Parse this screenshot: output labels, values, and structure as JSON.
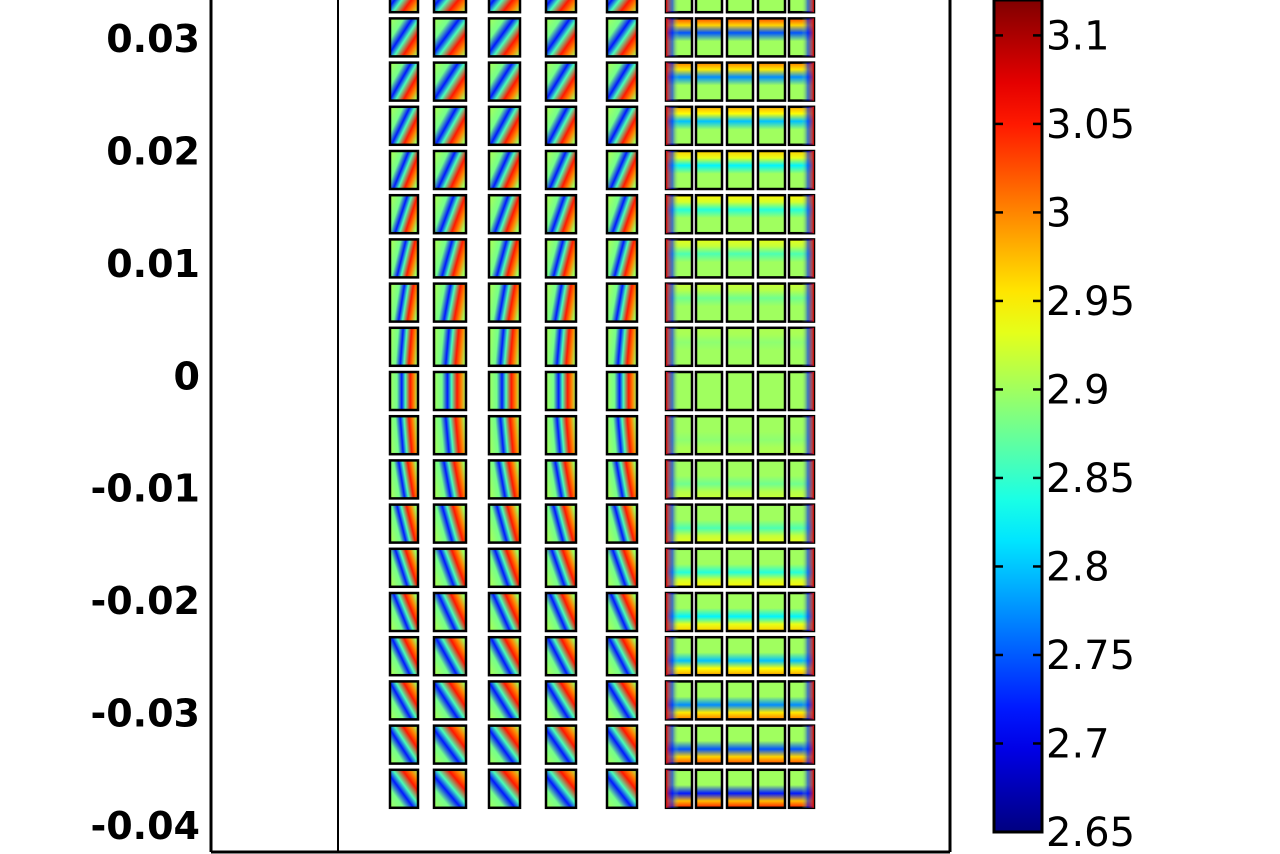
{
  "chart_data": {
    "type": "heatmap",
    "title": "",
    "xlabel": "",
    "ylabel": "",
    "y_ticks": [
      "0.03",
      "0.02",
      "0.01",
      "0",
      "-0.01",
      "-0.02",
      "-0.03",
      "-0.04"
    ],
    "y_tick_values": [
      0.03,
      0.02,
      0.01,
      0,
      -0.01,
      -0.02,
      -0.03,
      -0.04
    ],
    "ylim": [
      -0.04,
      0.034
    ],
    "colorbar": {
      "colormap": "jet",
      "range": [
        2.65,
        3.12
      ],
      "ticks": [
        "3.1",
        "3.05",
        "3",
        "2.95",
        "2.9",
        "2.85",
        "2.8",
        "2.75",
        "2.7",
        "2.65"
      ],
      "tick_values": [
        3.1,
        3.05,
        3.0,
        2.95,
        2.9,
        2.85,
        2.8,
        2.75,
        2.7,
        2.65
      ]
    },
    "cells": {
      "rows_per_column": 19,
      "narrow_columns": 5,
      "wide_block_columns": 5,
      "narrow_pattern": "diagonal band: low (blue) on one side, high (red) on the other, tilting with vertical position",
      "wide_pattern": "arc bands: high values (red/orange) at top and bottom rows, mid values (green) in the middle rows",
      "baseline_value": 2.9,
      "band_low": 2.72,
      "band_high": 3.05
    },
    "grid": false,
    "legend": "colorbar-right"
  },
  "colors": {
    "axis": "#000000",
    "background": "#ffffff",
    "cell_border": "#000000"
  }
}
